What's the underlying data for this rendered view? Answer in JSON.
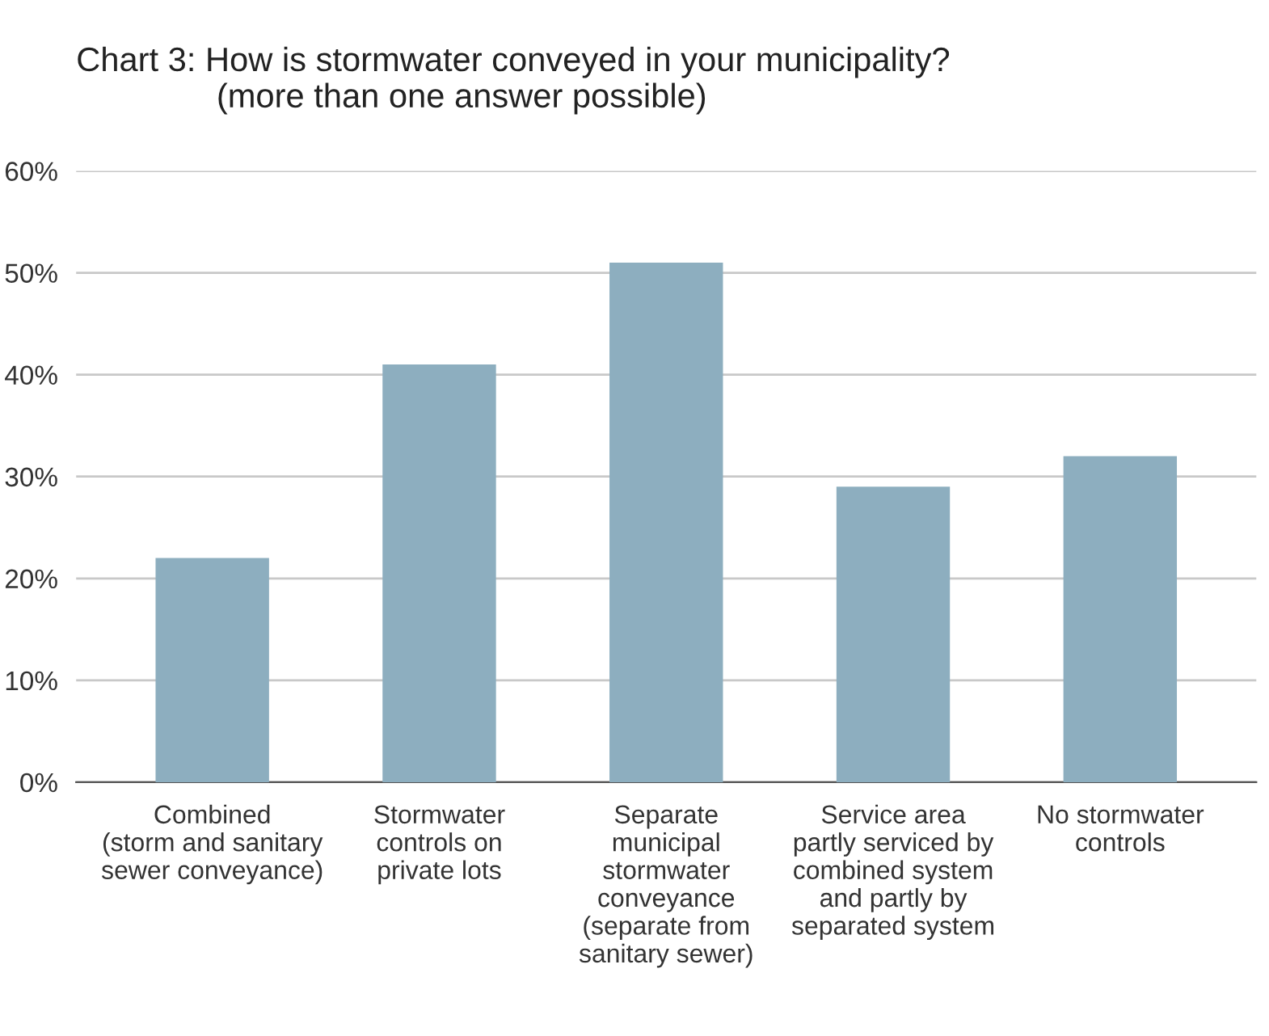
{
  "chart_data": {
    "type": "bar",
    "title": "Chart 3: How is stormwater conveyed in your municipality?\n               (more than one answer possible)",
    "categories": [
      "Combined\n(storm and sanitary\nsewer conveyance)",
      "Stormwater\ncontrols on\nprivate lots",
      "Separate\nmunicipal\nstormwater\nconveyance\n(separate from\nsanitary sewer)",
      "Service area\npartly serviced by\ncombined system\nand partly by\nseparated system",
      "No stormwater\ncontrols"
    ],
    "values": [
      22,
      41,
      51,
      29,
      32
    ],
    "color": "#8daebf",
    "ylim": [
      0,
      60
    ],
    "yticks": [
      {
        "value": 0,
        "label": "0%"
      },
      {
        "value": 10,
        "label": "10%"
      },
      {
        "value": 20,
        "label": "20%"
      },
      {
        "value": 30,
        "label": "30%"
      },
      {
        "value": 40,
        "label": "40%"
      },
      {
        "value": 50,
        "label": "50%"
      },
      {
        "value": 60,
        "label": "60%"
      }
    ],
    "grid": "y"
  }
}
